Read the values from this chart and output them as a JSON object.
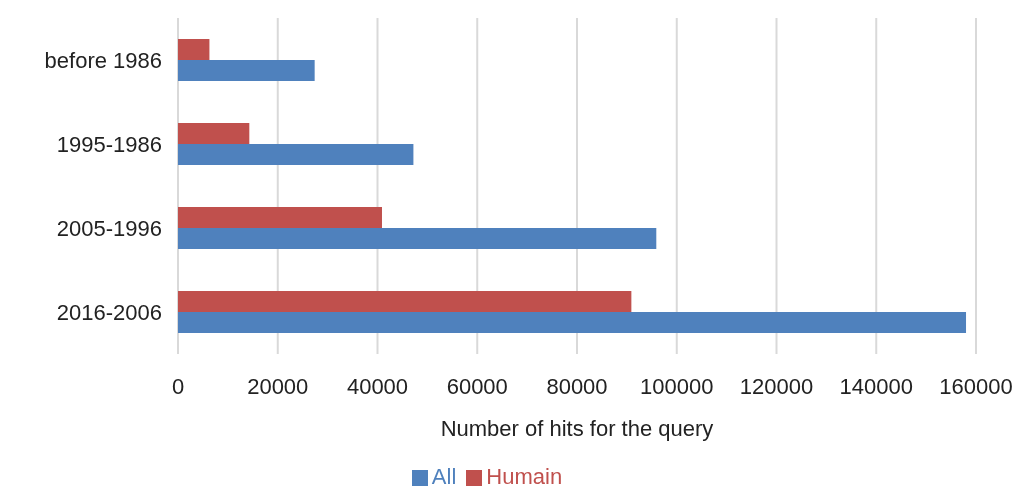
{
  "chart_data": {
    "type": "bar",
    "orientation": "horizontal",
    "xlabel": "Number of hits for the query",
    "categories": [
      "before 1986",
      "1995-1986",
      "2005-1996",
      "2016-2006"
    ],
    "series": [
      {
        "name": "Humain",
        "color": "#c0504d",
        "values": [
          6300,
          14300,
          40900,
          90900
        ]
      },
      {
        "name": "All",
        "color": "#4f81bd",
        "values": [
          27400,
          47200,
          95900,
          158000
        ]
      }
    ],
    "xlim": [
      0,
      160000
    ],
    "xticks": [
      0,
      20000,
      40000,
      60000,
      80000,
      100000,
      120000,
      140000,
      160000
    ],
    "grid": "x",
    "legend": "bottom"
  }
}
